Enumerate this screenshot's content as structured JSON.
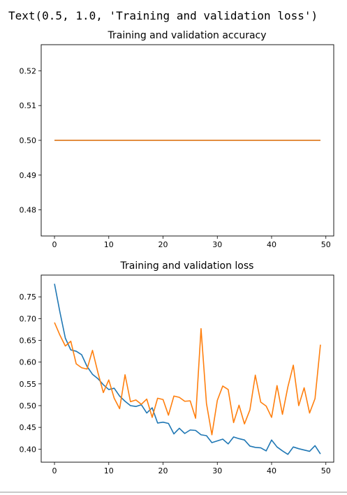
{
  "output_text": "Text(0.5, 1.0, 'Training and validation loss')",
  "colors": {
    "training": "#1f77b4",
    "validation": "#ff7f0e",
    "axis": "#000000"
  },
  "chart_data": [
    {
      "type": "line",
      "title": "Training and validation accuracy",
      "xlabel": "",
      "ylabel": "",
      "xlim": [
        -2.45,
        51.45
      ],
      "ylim": [
        0.4725,
        0.5275
      ],
      "xticks": [
        0,
        10,
        20,
        30,
        40,
        50
      ],
      "yticks": [
        0.48,
        0.49,
        0.5,
        0.51,
        0.52
      ],
      "ytick_decimals": 2,
      "grid": false,
      "x": [
        0,
        49
      ],
      "series": [
        {
          "color": "#1f77b4",
          "values": [
            0.5,
            0.5
          ]
        },
        {
          "color": "#ff7f0e",
          "values": [
            0.5,
            0.5
          ]
        }
      ]
    },
    {
      "type": "line",
      "title": "Training and validation loss",
      "xlabel": "",
      "ylabel": "",
      "xlim": [
        -2.45,
        51.45
      ],
      "ylim": [
        0.37,
        0.8
      ],
      "xticks": [
        0,
        10,
        20,
        30,
        40,
        50
      ],
      "yticks": [
        0.4,
        0.45,
        0.5,
        0.55,
        0.6,
        0.65,
        0.7,
        0.75
      ],
      "ytick_decimals": 2,
      "grid": false,
      "x": [
        0,
        1,
        2,
        3,
        4,
        5,
        6,
        7,
        8,
        9,
        10,
        11,
        12,
        13,
        14,
        15,
        16,
        17,
        18,
        19,
        20,
        21,
        22,
        23,
        24,
        25,
        26,
        27,
        28,
        29,
        30,
        31,
        32,
        33,
        34,
        35,
        36,
        37,
        38,
        39,
        40,
        41,
        42,
        43,
        44,
        45,
        46,
        47,
        48,
        49
      ],
      "series": [
        {
          "color": "#1f77b4",
          "values": [
            0.78,
            0.715,
            0.655,
            0.628,
            0.625,
            0.617,
            0.59,
            0.572,
            0.562,
            0.548,
            0.537,
            0.54,
            0.522,
            0.51,
            0.5,
            0.498,
            0.502,
            0.483,
            0.495,
            0.46,
            0.462,
            0.459,
            0.435,
            0.448,
            0.436,
            0.444,
            0.443,
            0.433,
            0.431,
            0.415,
            0.419,
            0.423,
            0.412,
            0.428,
            0.424,
            0.421,
            0.407,
            0.404,
            0.403,
            0.396,
            0.421,
            0.405,
            0.396,
            0.388,
            0.405,
            0.401,
            0.398,
            0.395,
            0.408,
            0.389
          ]
        },
        {
          "color": "#ff7f0e",
          "values": [
            0.691,
            0.662,
            0.637,
            0.648,
            0.596,
            0.587,
            0.584,
            0.627,
            0.576,
            0.53,
            0.559,
            0.517,
            0.493,
            0.571,
            0.509,
            0.513,
            0.503,
            0.515,
            0.473,
            0.517,
            0.514,
            0.478,
            0.522,
            0.519,
            0.51,
            0.511,
            0.471,
            0.677,
            0.505,
            0.433,
            0.512,
            0.545,
            0.537,
            0.461,
            0.501,
            0.458,
            0.49,
            0.57,
            0.508,
            0.499,
            0.473,
            0.546,
            0.48,
            0.543,
            0.593,
            0.5,
            0.541,
            0.483,
            0.516,
            0.64
          ]
        }
      ]
    }
  ]
}
